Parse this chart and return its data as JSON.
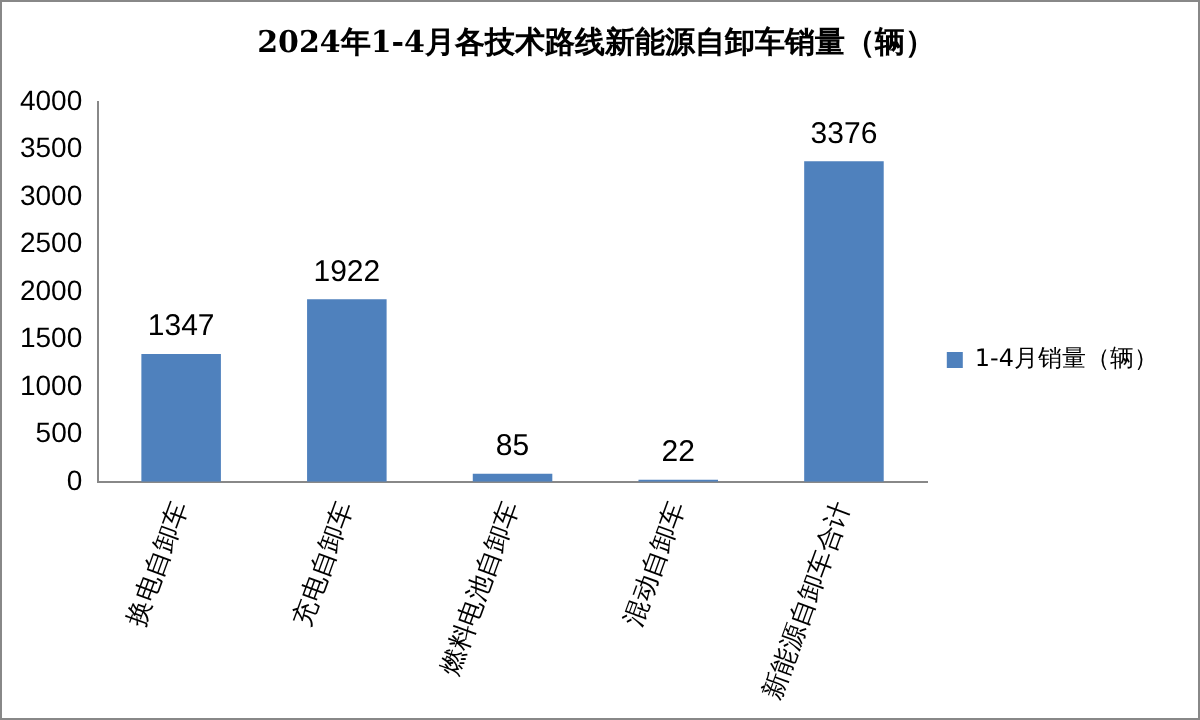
{
  "chart_data": {
    "type": "bar",
    "title": "2024年1-4月各技术路线新能源自卸车销量（辆）",
    "categories": [
      "换电自卸车",
      "充电自卸车",
      "燃料电池自卸车",
      "混动自卸车",
      "新能源自卸车合计"
    ],
    "series": [
      {
        "name": "1-4月销量（辆）",
        "color": "#4f81bd",
        "values": [
          1347,
          1922,
          85,
          22,
          3376
        ]
      }
    ],
    "ylim": [
      0,
      4000
    ],
    "yticks": [
      0,
      500,
      1000,
      1500,
      2000,
      2500,
      3000,
      3500,
      4000
    ],
    "grid": false,
    "legend": "right",
    "data_labels": true
  }
}
